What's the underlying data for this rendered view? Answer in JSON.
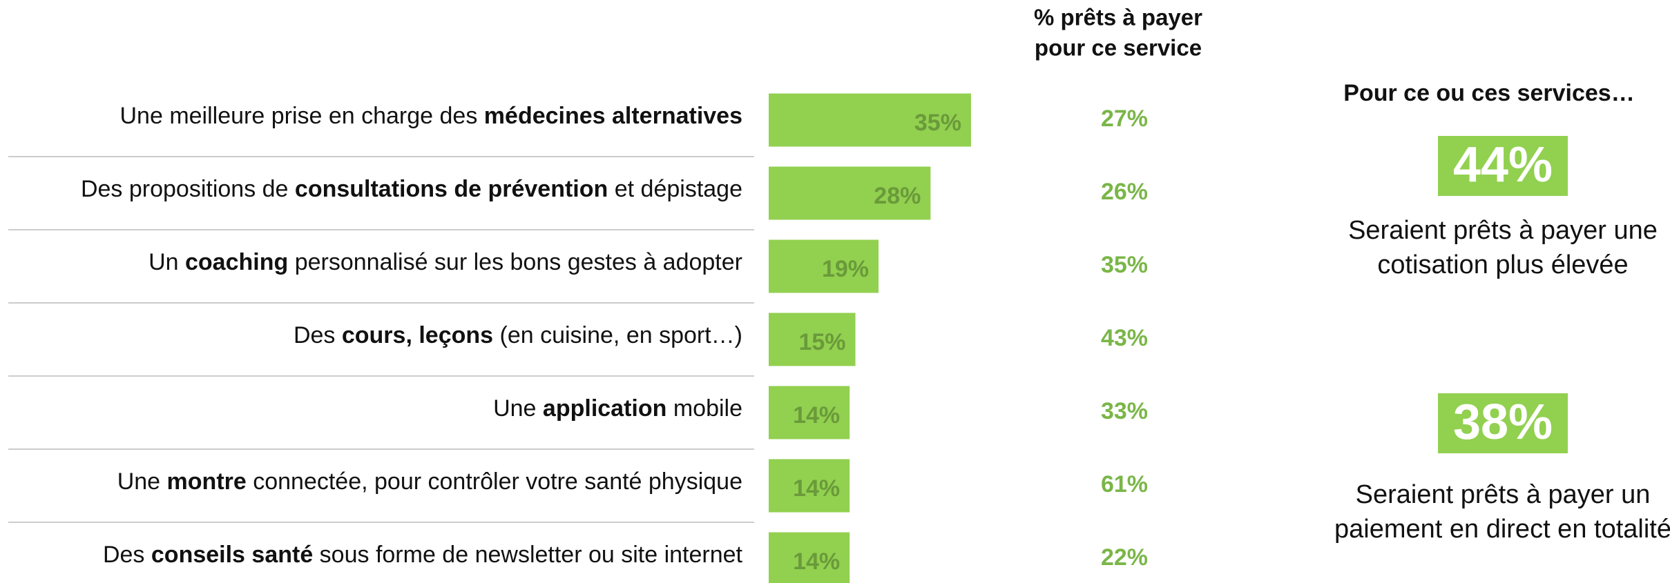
{
  "chart_data": {
    "type": "bar",
    "categories": [
      [
        {
          "text": "Une meilleure prise en charge des "
        },
        {
          "text": "médecines alternatives",
          "bold": true
        }
      ],
      [
        {
          "text": "Des propositions de "
        },
        {
          "text": "consultations de prévention",
          "bold": true
        },
        {
          "text": " et dépistage"
        }
      ],
      [
        {
          "text": "Un "
        },
        {
          "text": "coaching",
          "bold": true
        },
        {
          "text": " personnalisé sur les bons gestes à adopter"
        }
      ],
      [
        {
          "text": "Des "
        },
        {
          "text": "cours, leçons",
          "bold": true
        },
        {
          "text": " (en cuisine, en sport…)"
        }
      ],
      [
        {
          "text": "Une "
        },
        {
          "text": "application",
          "bold": true
        },
        {
          "text": " mobile"
        }
      ],
      [
        {
          "text": "Une "
        },
        {
          "text": "montre",
          "bold": true
        },
        {
          "text": " connectée, pour contrôler votre santé physique"
        }
      ],
      [
        {
          "text": "Des "
        },
        {
          "text": "conseils santé",
          "bold": true
        },
        {
          "text": " sous forme de newsletter ou site internet"
        }
      ]
    ],
    "values": [
      35,
      28,
      19,
      15,
      14,
      14,
      14
    ],
    "value_labels": [
      "35%",
      "28%",
      "19%",
      "15%",
      "14%",
      "14%",
      "14%"
    ],
    "color": "#92d050",
    "willing_to_pay": {
      "title": [
        "% prêts à payer",
        "pour ce service"
      ],
      "values": [
        27,
        26,
        35,
        43,
        33,
        61,
        22
      ],
      "value_labels": [
        "27%",
        "26%",
        "35%",
        "43%",
        "33%",
        "61%",
        "22%"
      ]
    },
    "summary": {
      "title": "Pour ce ou ces services…",
      "items": [
        {
          "value": 44,
          "label": "44%",
          "text": [
            "Seraient prêts à payer une",
            "cotisation plus élevée"
          ]
        },
        {
          "value": 38,
          "label": "38%",
          "text": [
            "Seraient prêts à payer un",
            "paiement en direct en totalité"
          ]
        }
      ]
    }
  }
}
